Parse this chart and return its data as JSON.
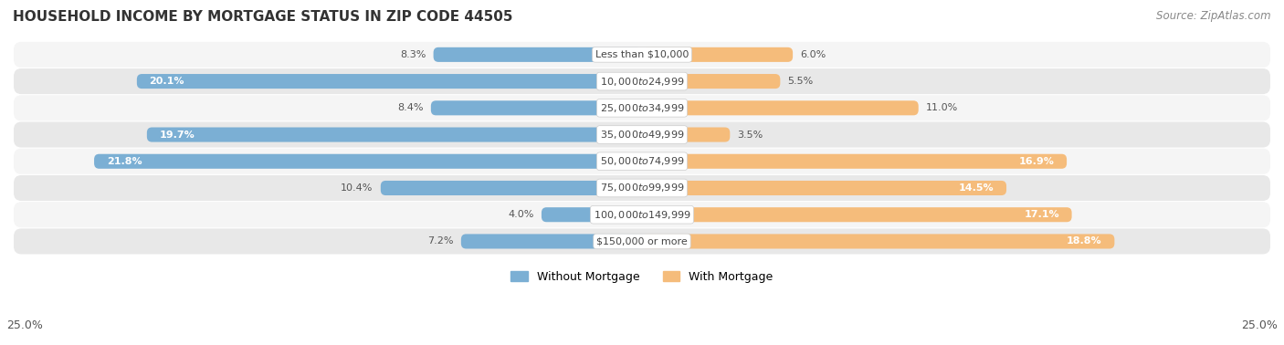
{
  "title": "HOUSEHOLD INCOME BY MORTGAGE STATUS IN ZIP CODE 44505",
  "source": "Source: ZipAtlas.com",
  "categories": [
    "Less than $10,000",
    "$10,000 to $24,999",
    "$25,000 to $34,999",
    "$35,000 to $49,999",
    "$50,000 to $74,999",
    "$75,000 to $99,999",
    "$100,000 to $149,999",
    "$150,000 or more"
  ],
  "without_mortgage": [
    8.3,
    20.1,
    8.4,
    19.7,
    21.8,
    10.4,
    4.0,
    7.2
  ],
  "with_mortgage": [
    6.0,
    5.5,
    11.0,
    3.5,
    16.9,
    14.5,
    17.1,
    18.8
  ],
  "without_color": "#7bafd4",
  "with_color": "#f5bc7b",
  "axis_max": 25.0,
  "title_fontsize": 11,
  "source_fontsize": 8.5,
  "label_fontsize": 8,
  "cat_fontsize": 8,
  "bar_height": 0.55,
  "fig_bg": "#ffffff",
  "row_bg_light": "#f5f5f5",
  "row_bg_dark": "#e8e8e8",
  "inside_label_threshold": 12
}
